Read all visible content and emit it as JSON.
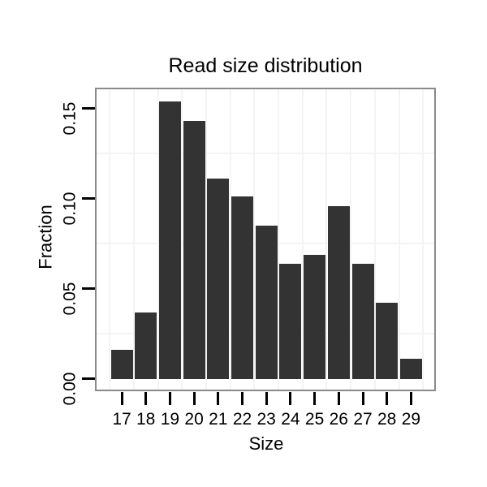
{
  "figure": {
    "title": "Read size distribution",
    "x_axis_label": "Size",
    "y_axis_label": "Fraction"
  },
  "chart_data": {
    "type": "bar",
    "title": "Read size distribution",
    "xlabel": "Size",
    "ylabel": "Fraction",
    "categories": [
      17,
      18,
      19,
      20,
      21,
      22,
      23,
      24,
      25,
      26,
      27,
      28,
      29
    ],
    "values": [
      0.016,
      0.037,
      0.154,
      0.143,
      0.111,
      0.101,
      0.085,
      0.064,
      0.069,
      0.096,
      0.064,
      0.042,
      0.011
    ],
    "x_tick_labels": [
      "17",
      "18",
      "19",
      "20",
      "21",
      "22",
      "23",
      "24",
      "25",
      "26",
      "27",
      "28",
      "29"
    ],
    "y_ticks": [
      {
        "value": 0.0,
        "label": "0.00"
      },
      {
        "value": 0.05,
        "label": "0.05"
      },
      {
        "value": 0.1,
        "label": "0.10"
      },
      {
        "value": 0.15,
        "label": "0.15"
      }
    ],
    "ylim": [
      -0.0065,
      0.161
    ],
    "xlim": [
      15.9,
      30.0
    ],
    "minor_gridlines_y": [
      0.025,
      0.075,
      0.125
    ],
    "minor_gridlines_x_at_half_steps": true,
    "grid": "minor gridlines only, very light grey; no major gridlines",
    "legend": "none",
    "bar_relative_width": 0.9,
    "colors": {
      "bar": "#333333",
      "panel_border": "#8a8a8a",
      "gridline": "#f4f4f4",
      "tick": "#000000",
      "text": "#000000",
      "background": "#ffffff"
    }
  }
}
